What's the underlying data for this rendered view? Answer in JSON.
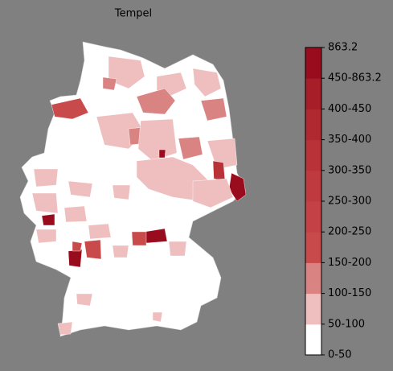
{
  "title": "Tempel",
  "legend": {
    "labels": [
      "0-50",
      "50-100",
      "100-150",
      "150-200",
      "200-250",
      "250-300",
      "300-350",
      "350-400",
      "400-450",
      "450-863.2",
      "863.2"
    ],
    "colors": [
      "#ffffff",
      "#efbfbf",
      "#d98383",
      "#c94a4b",
      "#c44245",
      "#be3a3f",
      "#b83238",
      "#b12930",
      "#a81e28",
      "#990c1e"
    ]
  }
}
